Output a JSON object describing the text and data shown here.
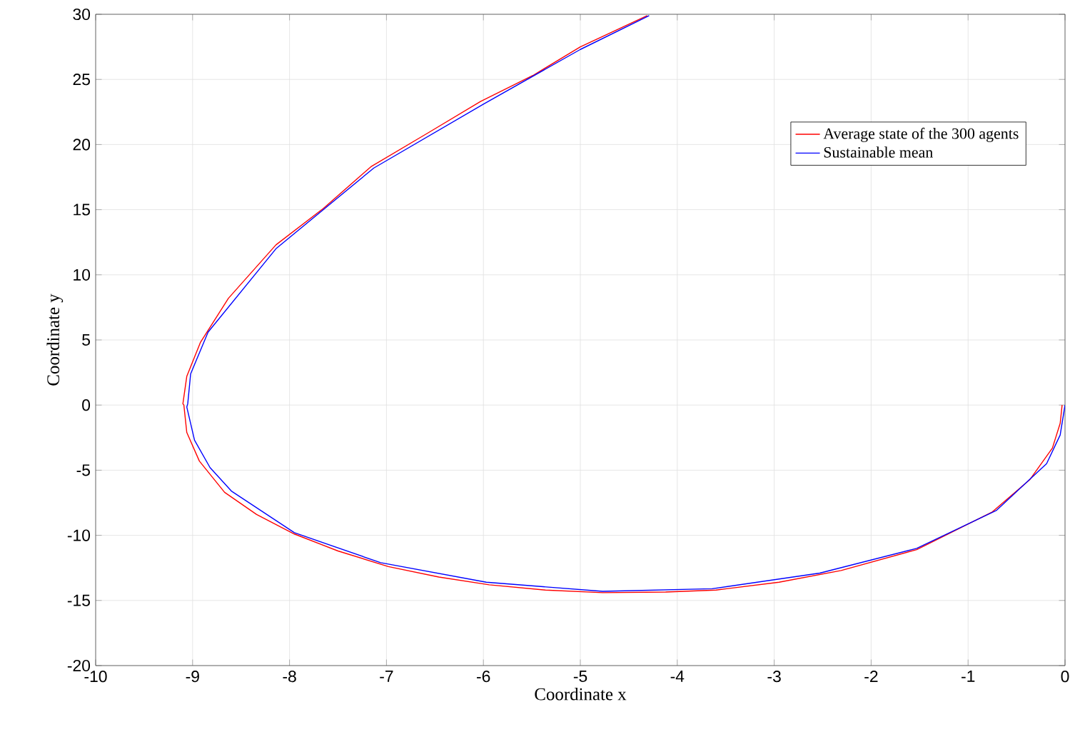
{
  "chart_data": {
    "type": "line",
    "xlabel": "Coordinate x",
    "ylabel": "Coordinate y",
    "xlim": [
      -10,
      0
    ],
    "ylim": [
      -20,
      30
    ],
    "xticks": [
      -10,
      -9,
      -8,
      -7,
      -6,
      -5,
      -4,
      -3,
      -2,
      -1,
      0
    ],
    "yticks": [
      -20,
      -15,
      -10,
      -5,
      0,
      5,
      10,
      15,
      20,
      25,
      30
    ],
    "grid": true,
    "legend": "top right",
    "line_style": "solid",
    "marker": "none",
    "series": [
      {
        "name": "Average state of the 300 agents",
        "color": "#ff0000",
        "x": [
          -0.03,
          -0.05,
          -0.13,
          -0.36,
          -0.75,
          -1.53,
          -2.31,
          -2.95,
          -3.6,
          -4.12,
          -4.77,
          -5.36,
          -5.94,
          -6.46,
          -6.98,
          -7.5,
          -7.95,
          -8.34,
          -8.67,
          -8.93,
          -9.06,
          -9.09,
          -9.1,
          -9.06,
          -8.92,
          -8.63,
          -8.14,
          -7.65,
          -7.16,
          -6.57,
          -6.03,
          -5.49,
          -5.0,
          -4.31
        ],
        "values": [
          0,
          -1.4,
          -3.3,
          -5.7,
          -8.2,
          -11.1,
          -12.7,
          -13.6,
          -14.2,
          -14.35,
          -14.4,
          -14.2,
          -13.8,
          -13.2,
          -12.4,
          -11.2,
          -9.9,
          -8.4,
          -6.7,
          -4.3,
          -2.1,
          0,
          0.1,
          2.2,
          4.8,
          8.2,
          12.3,
          15.1,
          18.3,
          20.9,
          23.3,
          25.3,
          27.5,
          29.9
        ]
      },
      {
        "name": "Sustainable mean",
        "color": "#0000ff",
        "x": [
          0,
          -0.05,
          -0.19,
          -0.71,
          -1.53,
          -2.53,
          -3.64,
          -4.77,
          -5.97,
          -7.06,
          -7.95,
          -8.6,
          -8.82,
          -8.98,
          -9.06,
          -9.05,
          -9.02,
          -8.84,
          -8.14,
          -7.13,
          -6.0,
          -5.0,
          -4.29
        ],
        "values": [
          0,
          -2.3,
          -4.5,
          -8.1,
          -11.0,
          -12.9,
          -14.1,
          -14.3,
          -13.6,
          -12.1,
          -9.8,
          -6.6,
          -4.8,
          -2.7,
          -0.15,
          0.1,
          2.4,
          5.6,
          12.0,
          18.2,
          23.1,
          27.3,
          29.9
        ]
      }
    ]
  }
}
